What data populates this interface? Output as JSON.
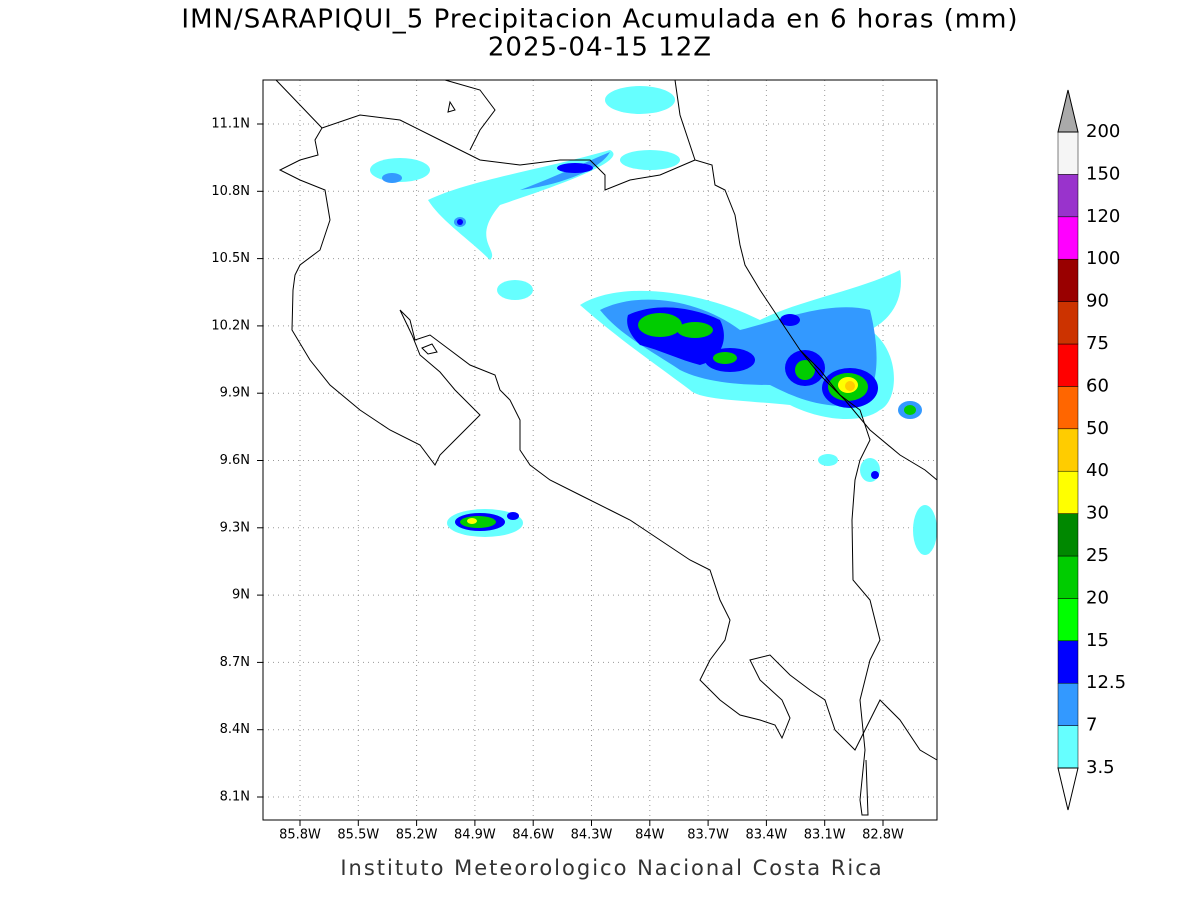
{
  "map": {
    "title": "IMN/SARAPIQUI_5 Precipitacion Acumulada en 6 horas (mm)",
    "subtitle": "2025-04-15 12Z",
    "lat_labels": [
      "11.1N",
      "10.8N",
      "10.5N",
      "10.2N",
      "9.9N",
      "9.6N",
      "9.3N",
      "9N",
      "8.7N",
      "8.4N",
      "8.1N"
    ],
    "lon_labels": [
      "85.8W",
      "85.5W",
      "85.2W",
      "84.9W",
      "84.6W",
      "84.3W",
      "84W",
      "83.7W",
      "83.4W",
      "83.1W",
      "82.8W"
    ],
    "footer": "Instituto Meteorologico Nacional Costa Rica"
  },
  "colorbar": {
    "levels": [
      3.5,
      7,
      12.5,
      15,
      20,
      25,
      30,
      40,
      50,
      60,
      75,
      90,
      100,
      120,
      150,
      200
    ],
    "colors": [
      "#66ffff",
      "#3399ff",
      "#0000ff",
      "#00ff00",
      "#00cc00",
      "#008800",
      "#ffff00",
      "#ffcc00",
      "#ff6600",
      "#ff0000",
      "#cc3300",
      "#990000",
      "#ff00ff",
      "#9933cc",
      "#f5f5f5"
    ],
    "below_color": "#ffffff",
    "above_color": "#aaaaaa"
  }
}
